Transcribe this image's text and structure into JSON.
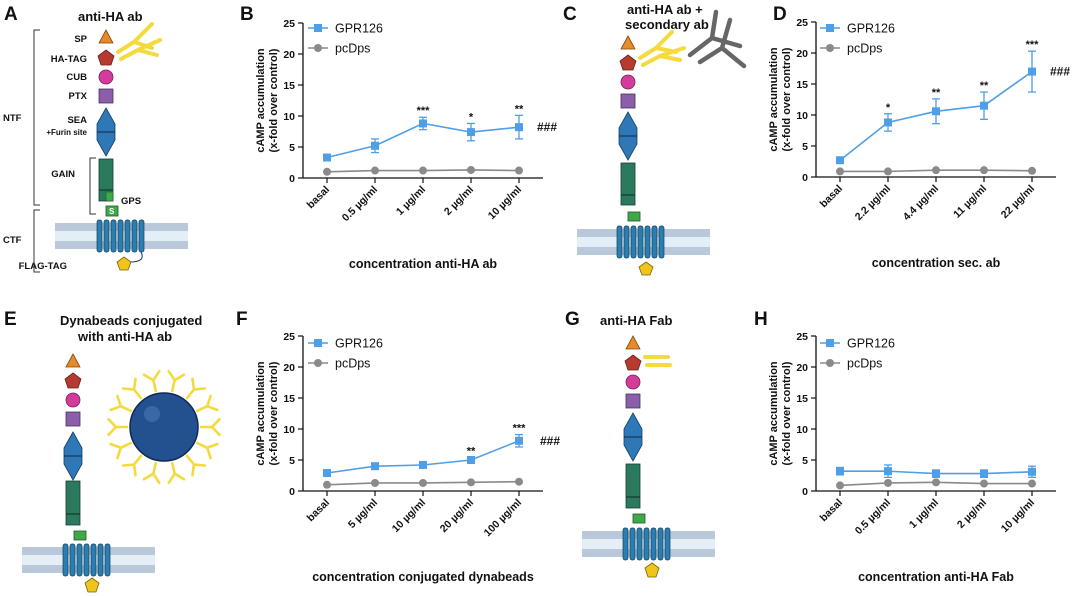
{
  "colors": {
    "gpr": "#4f9ee8",
    "pc": "#8a8a8a",
    "sp": "#e88a2a",
    "tag": "#b53a2f",
    "cub": "#d43c9c",
    "ptx": "#8a5ea8",
    "sea": "#2f78b8",
    "gain": "#2b7a5e",
    "gps": "#3fa84a",
    "tm": "#2b7fb0",
    "flag": "#f0c419",
    "ab": "#f4da3c",
    "secab": "#666666",
    "bead": "#23508f",
    "membrane": "#b9c9d9"
  },
  "panels": {
    "A": {
      "label": "A",
      "title": "anti-HA ab"
    },
    "C": {
      "label": "C",
      "title_line1": "anti-HA ab +",
      "title_line2": "secondary ab"
    },
    "E": {
      "label": "E",
      "title_line1": "Dynabeads conjugated",
      "title_line2": "with anti-HA ab"
    },
    "G": {
      "label": "G",
      "title": "anti-HA Fab"
    }
  },
  "schematic": {
    "sp": "SP",
    "ha_tag": "HA-TAG",
    "cub": "CUB",
    "ptx": "PTX",
    "sea": "SEA",
    "furin": "+Furin site",
    "gain": "GAIN",
    "gps": "GPS",
    "gps_letter": "S",
    "ntf": "NTF",
    "ctf": "CTF",
    "flag_tag": "FLAG-TAG"
  },
  "chart_data": [
    {
      "panel": "B",
      "type": "line",
      "categories": [
        "basal",
        "0.5 µg/ml",
        "1 µg/ml",
        "2 µg/ml",
        "10 µg/ml"
      ],
      "series": [
        {
          "name": "GPR126",
          "values": [
            3.3,
            5.2,
            8.8,
            7.4,
            8.2
          ],
          "errors": [
            0.5,
            1.1,
            1.0,
            1.4,
            1.9
          ]
        },
        {
          "name": "pcDps",
          "values": [
            1.0,
            1.2,
            1.2,
            1.3,
            1.2
          ],
          "errors": [
            0,
            0,
            0,
            0,
            0
          ]
        }
      ],
      "significance": [
        "",
        "",
        "***",
        "*",
        "**"
      ],
      "hash_label": "###",
      "xlabel": "concentration anti-HA ab",
      "ylabel_line1": "cAMP accumulation",
      "ylabel_line2": "(x-fold over control)",
      "ylim": [
        0,
        25
      ],
      "yticks": [
        "0",
        "5",
        "10",
        "15",
        "20",
        "25"
      ]
    },
    {
      "panel": "D",
      "type": "line",
      "categories": [
        "basal",
        "2.2 µg/ml",
        "4.4 µg/ml",
        "11 µg/ml",
        "22 µg/ml"
      ],
      "series": [
        {
          "name": "GPR126",
          "values": [
            2.7,
            8.8,
            10.6,
            11.5,
            17.0
          ],
          "errors": [
            0.3,
            1.4,
            2.0,
            2.2,
            3.3
          ]
        },
        {
          "name": "pcDps",
          "values": [
            0.9,
            0.9,
            1.1,
            1.1,
            1.0
          ],
          "errors": [
            0,
            0,
            0,
            0,
            0
          ]
        }
      ],
      "significance": [
        "",
        "*",
        "**",
        "**",
        "***"
      ],
      "hash_label": "###",
      "xlabel": "concentration sec. ab",
      "ylabel_line1": "cAMP accumulation",
      "ylabel_line2": "(x-fold over control)",
      "ylim": [
        0,
        25
      ],
      "yticks": [
        "0",
        "5",
        "10",
        "15",
        "20",
        "25"
      ]
    },
    {
      "panel": "F",
      "type": "line",
      "categories": [
        "basal",
        "5 µg/ml",
        "10 µg/ml",
        "20 µg/ml",
        "100 µg/ml"
      ],
      "series": [
        {
          "name": "GPR126",
          "values": [
            2.9,
            4.0,
            4.2,
            5.0,
            8.1
          ],
          "errors": [
            0.3,
            0.5,
            0.4,
            0.4,
            1.0
          ]
        },
        {
          "name": "pcDps",
          "values": [
            1.0,
            1.3,
            1.3,
            1.4,
            1.5
          ],
          "errors": [
            0,
            0,
            0,
            0,
            0
          ]
        }
      ],
      "significance": [
        "",
        "",
        "",
        "**",
        "***"
      ],
      "hash_label": "###",
      "xlabel": "concentration conjugated dynabeads",
      "ylabel_line1": "cAMP accumulation",
      "ylabel_line2": "(x-fold over control)",
      "ylim": [
        0,
        25
      ],
      "yticks": [
        "0",
        "5",
        "10",
        "15",
        "20",
        "25"
      ]
    },
    {
      "panel": "H",
      "type": "line",
      "categories": [
        "basal",
        "0.5 µg/ml",
        "1 µg/ml",
        "2 µg/ml",
        "10 µg/ml"
      ],
      "series": [
        {
          "name": "GPR126",
          "values": [
            3.2,
            3.2,
            2.8,
            2.8,
            3.1
          ],
          "errors": [
            0.6,
            1.0,
            0.6,
            0.6,
            0.9
          ]
        },
        {
          "name": "pcDps",
          "values": [
            0.9,
            1.3,
            1.4,
            1.2,
            1.2
          ],
          "errors": [
            0,
            0,
            0,
            0,
            0
          ]
        }
      ],
      "significance": [
        "",
        "",
        "",
        "",
        ""
      ],
      "hash_label": "",
      "xlabel": "concentration anti-HA Fab",
      "ylabel_line1": "cAMP accumulation",
      "ylabel_line2": "(x-fold over control)",
      "ylim": [
        0,
        25
      ],
      "yticks": [
        "0",
        "5",
        "10",
        "15",
        "20",
        "25"
      ]
    }
  ]
}
